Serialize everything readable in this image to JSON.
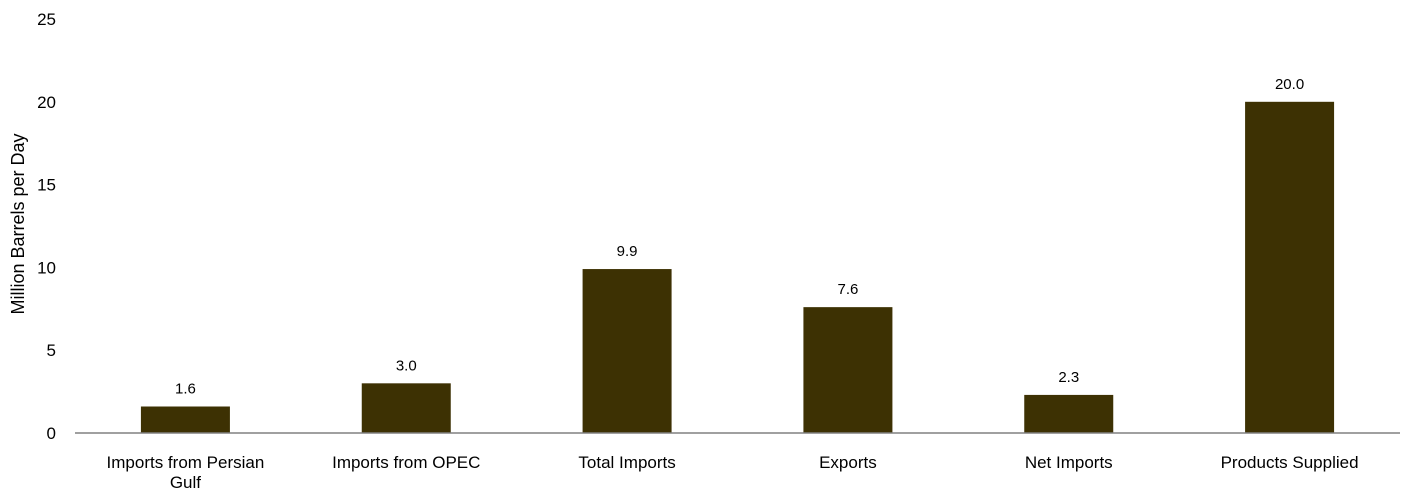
{
  "chart_data": {
    "type": "bar",
    "categories": [
      [
        "Imports from Persian",
        "Gulf"
      ],
      [
        "Imports from OPEC"
      ],
      [
        "Total Imports"
      ],
      [
        "Exports"
      ],
      [
        "Net Imports"
      ],
      [
        "Products Supplied"
      ]
    ],
    "values": [
      1.6,
      3.0,
      9.9,
      7.6,
      2.3,
      20.0
    ],
    "data_labels": [
      "1.6",
      "3.0",
      "9.9",
      "7.6",
      "2.3",
      "20.0"
    ],
    "ylabel": "Million Barrels per Day",
    "ylim": [
      0,
      25
    ],
    "yticks": [
      0,
      5,
      10,
      15,
      20,
      25
    ],
    "grid": false,
    "colors": {
      "bar": "#3D3103",
      "axis": "#808080"
    }
  }
}
